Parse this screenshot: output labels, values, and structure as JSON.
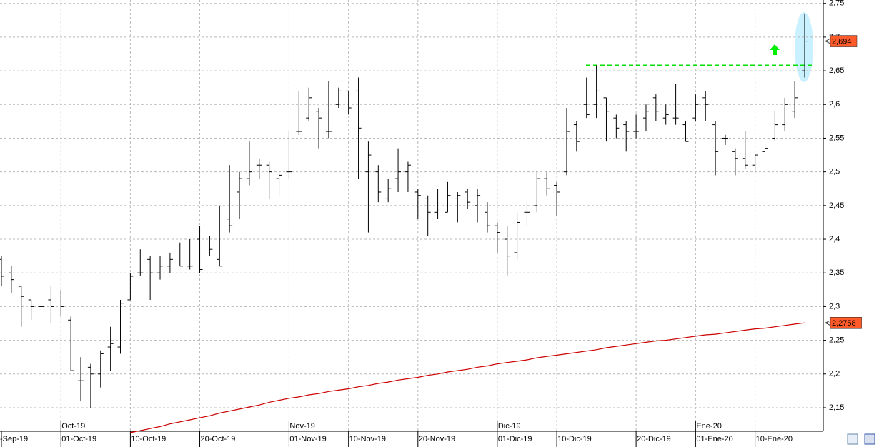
{
  "chart_data": {
    "type": "ohlc",
    "categories": [
      "-Sep-19",
      null,
      null,
      null,
      null,
      null,
      "01-Oct-19",
      null,
      null,
      null,
      null,
      null,
      null,
      "10-Oct-19",
      null,
      null,
      null,
      null,
      null,
      null,
      "20-Oct-19",
      null,
      null,
      null,
      null,
      null,
      null,
      null,
      null,
      "01-Nov-19",
      null,
      null,
      null,
      null,
      null,
      "10-Nov-19",
      null,
      null,
      null,
      null,
      null,
      null,
      "20-Nov-19",
      null,
      null,
      null,
      null,
      null,
      null,
      null,
      "01-Dic-19",
      null,
      null,
      null,
      null,
      null,
      "10-Dic-19",
      null,
      null,
      null,
      null,
      null,
      null,
      null,
      "20-Dic-19",
      null,
      null,
      null,
      null,
      null,
      "01-Ene-20",
      null,
      null,
      null,
      null,
      null,
      "10-Ene-20",
      null,
      null,
      null,
      null,
      null
    ],
    "month_labels": [
      null,
      null,
      null,
      null,
      null,
      null,
      "Oct-19",
      null,
      null,
      null,
      null,
      null,
      null,
      null,
      null,
      null,
      null,
      null,
      null,
      null,
      null,
      null,
      null,
      null,
      null,
      null,
      null,
      null,
      null,
      "Nov-19",
      null,
      null,
      null,
      null,
      null,
      null,
      null,
      null,
      null,
      null,
      null,
      null,
      null,
      null,
      null,
      null,
      null,
      null,
      null,
      null,
      "Dic-19",
      null,
      null,
      null,
      null,
      null,
      null,
      null,
      null,
      null,
      null,
      null,
      null,
      null,
      null,
      null,
      null,
      null,
      null,
      null,
      "Ene-20",
      null,
      null,
      null,
      null,
      null,
      null,
      null,
      null,
      null,
      null,
      null
    ],
    "open": [
      2.37,
      2.35,
      2.33,
      2.31,
      2.3,
      2.31,
      2.32,
      2.28,
      2.19,
      2.21,
      2.2,
      2.24,
      2.24,
      2.31,
      2.35,
      2.37,
      2.35,
      2.36,
      2.39,
      2.36,
      2.4,
      2.39,
      2.37,
      2.43,
      2.47,
      2.49,
      2.51,
      2.51,
      2.49,
      2.5,
      2.56,
      2.58,
      2.59,
      2.56,
      2.6,
      2.62,
      2.62,
      2.5,
      2.5,
      2.46,
      2.49,
      2.5,
      2.47,
      2.46,
      2.44,
      2.44,
      2.46,
      2.47,
      2.45,
      2.44,
      2.42,
      2.4,
      2.38,
      2.44,
      2.45,
      2.49,
      2.48,
      2.5,
      2.57,
      2.6,
      2.6,
      2.61,
      2.58,
      2.57,
      2.56,
      2.58,
      2.61,
      2.58,
      2.58,
      2.57,
      2.58,
      2.61,
      2.57,
      2.55,
      2.53,
      2.52,
      2.51,
      2.53,
      2.55,
      2.57,
      2.59,
      2.65
    ],
    "high": [
      2.375,
      2.36,
      2.33,
      2.31,
      2.31,
      2.33,
      2.325,
      2.285,
      2.225,
      2.215,
      2.235,
      2.27,
      2.31,
      2.35,
      2.385,
      2.375,
      2.375,
      2.38,
      2.395,
      2.4,
      2.42,
      2.405,
      2.45,
      2.51,
      2.5,
      2.545,
      2.52,
      2.515,
      2.5,
      2.56,
      2.62,
      2.625,
      2.595,
      2.635,
      2.625,
      2.62,
      2.64,
      2.545,
      2.51,
      2.49,
      2.535,
      2.515,
      2.475,
      2.465,
      2.475,
      2.485,
      2.47,
      2.475,
      2.475,
      2.455,
      2.425,
      2.42,
      2.44,
      2.455,
      2.5,
      2.5,
      2.485,
      2.595,
      2.575,
      2.64,
      2.658,
      2.61,
      2.585,
      2.575,
      2.585,
      2.6,
      2.615,
      2.6,
      2.63,
      2.575,
      2.615,
      2.62,
      2.575,
      2.555,
      2.535,
      2.56,
      2.525,
      2.565,
      2.59,
      2.61,
      2.635,
      2.735
    ],
    "low": [
      2.33,
      2.32,
      2.27,
      2.28,
      2.28,
      2.275,
      2.285,
      2.205,
      2.16,
      2.15,
      2.18,
      2.205,
      2.23,
      2.31,
      2.345,
      2.31,
      2.34,
      2.35,
      2.36,
      2.355,
      2.35,
      2.375,
      2.36,
      2.41,
      2.43,
      2.48,
      2.49,
      2.46,
      2.465,
      2.49,
      2.555,
      2.575,
      2.535,
      2.55,
      2.595,
      2.585,
      2.49,
      2.41,
      2.455,
      2.455,
      2.47,
      2.47,
      2.43,
      2.405,
      2.43,
      2.44,
      2.425,
      2.445,
      2.425,
      2.41,
      2.38,
      2.345,
      2.37,
      2.42,
      2.44,
      2.465,
      2.435,
      2.495,
      2.53,
      2.58,
      2.58,
      2.545,
      2.55,
      2.53,
      2.55,
      2.56,
      2.575,
      2.57,
      2.57,
      2.545,
      2.575,
      2.575,
      2.495,
      2.54,
      2.495,
      2.505,
      2.5,
      2.52,
      2.545,
      2.56,
      2.58,
      2.64
    ],
    "close": [
      2.345,
      2.34,
      2.315,
      2.3,
      2.3,
      2.3,
      2.3,
      2.205,
      2.19,
      2.2,
      2.23,
      2.245,
      2.305,
      2.345,
      2.35,
      2.35,
      2.36,
      2.37,
      2.36,
      2.36,
      2.355,
      2.385,
      2.36,
      2.42,
      2.49,
      2.5,
      2.51,
      2.5,
      2.495,
      2.5,
      2.56,
      2.61,
      2.58,
      2.56,
      2.62,
      2.595,
      2.565,
      2.525,
      2.47,
      2.475,
      2.5,
      2.51,
      2.465,
      2.44,
      2.445,
      2.465,
      2.465,
      2.455,
      2.465,
      2.42,
      2.41,
      2.375,
      2.425,
      2.44,
      2.49,
      2.475,
      2.47,
      2.56,
      2.545,
      2.585,
      2.62,
      2.59,
      2.565,
      2.56,
      2.56,
      2.59,
      2.59,
      2.585,
      2.58,
      2.545,
      2.6,
      2.6,
      2.53,
      2.55,
      2.52,
      2.51,
      2.525,
      2.535,
      2.57,
      2.6,
      2.61,
      2.694
    ],
    "color": "#000000",
    "moving_average": {
      "color": "#cc0000",
      "values": [
        null,
        null,
        null,
        null,
        null,
        null,
        null,
        null,
        null,
        null,
        null,
        null,
        null,
        2.113,
        2.116,
        2.119,
        2.122,
        2.126,
        2.129,
        2.132,
        2.135,
        2.138,
        2.142,
        2.145,
        2.148,
        2.151,
        2.154,
        2.158,
        2.161,
        2.164,
        2.166,
        2.169,
        2.171,
        2.174,
        2.176,
        2.178,
        2.181,
        2.183,
        2.186,
        2.188,
        2.191,
        2.193,
        2.195,
        2.198,
        2.2,
        2.203,
        2.205,
        2.207,
        2.21,
        2.212,
        2.215,
        2.217,
        2.219,
        2.221,
        2.224,
        2.226,
        2.228,
        2.23,
        2.232,
        2.234,
        2.236,
        2.239,
        2.241,
        2.243,
        2.245,
        2.247,
        2.249,
        2.25,
        2.252,
        2.254,
        2.256,
        2.258,
        2.259,
        2.261,
        2.263,
        2.265,
        2.267,
        2.268,
        2.27,
        2.272,
        2.274,
        2.2758
      ]
    },
    "resistance": {
      "value": 2.658,
      "color": "#00dd00"
    },
    "price_markers": [
      {
        "value": 2.694,
        "label": "2,694",
        "color": "#ff5a2a"
      },
      {
        "value": 2.2758,
        "label": "2,2758",
        "color": "#ff5a2a"
      }
    ],
    "ylim": [
      2.115,
      2.755
    ],
    "yticks": [
      {
        "value": 2.75,
        "label": "2,75"
      },
      {
        "value": 2.7,
        "label": "2,7"
      },
      {
        "value": 2.65,
        "label": "2,65"
      },
      {
        "value": 2.6,
        "label": "2,6"
      },
      {
        "value": 2.55,
        "label": "2,55"
      },
      {
        "value": 2.5,
        "label": "2,5"
      },
      {
        "value": 2.45,
        "label": "2,45"
      },
      {
        "value": 2.4,
        "label": "2,4"
      },
      {
        "value": 2.35,
        "label": "2,35"
      },
      {
        "value": 2.3,
        "label": "2,3"
      },
      {
        "value": 2.25,
        "label": "2,25"
      },
      {
        "value": 2.2,
        "label": "2,2"
      },
      {
        "value": 2.15,
        "label": "2,15"
      }
    ],
    "grid": true
  }
}
